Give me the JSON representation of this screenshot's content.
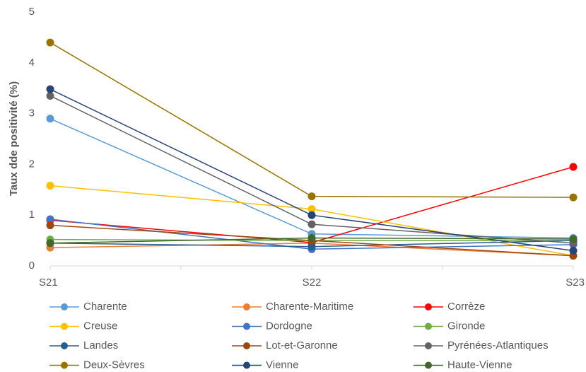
{
  "chart_data": {
    "type": "line",
    "y_label": "Taux dde positivité (%)",
    "categories": [
      "S21",
      "S22",
      "S23"
    ],
    "ylim": [
      0,
      5
    ],
    "yticks": [
      0,
      1,
      2,
      3,
      4,
      5
    ],
    "series": [
      {
        "name": "Charente",
        "color": "#5b9bd5",
        "values": [
          2.9,
          0.63,
          0.55
        ]
      },
      {
        "name": "Charente-Maritime",
        "color": "#ed7d31",
        "values": [
          0.36,
          0.45,
          0.2
        ]
      },
      {
        "name": "Corrèze",
        "color": "#ff0000",
        "values": [
          0.9,
          0.46,
          1.95
        ]
      },
      {
        "name": "Creuse",
        "color": "#ffc000",
        "values": [
          1.58,
          1.12,
          0.2
        ]
      },
      {
        "name": "Dordogne",
        "color": "#4472c4",
        "values": [
          0.92,
          0.33,
          0.42
        ]
      },
      {
        "name": "Gironde",
        "color": "#70ad47",
        "values": [
          0.52,
          0.5,
          0.5
        ]
      },
      {
        "name": "Landes",
        "color": "#255e91",
        "values": [
          0.45,
          0.38,
          0.5
        ]
      },
      {
        "name": "Lot-et-Garonne",
        "color": "#9e480e",
        "values": [
          0.8,
          0.5,
          0.2
        ]
      },
      {
        "name": "Pyrénées-Atlantiques",
        "color": "#636363",
        "values": [
          3.35,
          0.82,
          0.45
        ]
      },
      {
        "name": "Deux-Sèvres",
        "color": "#997300",
        "values": [
          4.4,
          1.37,
          1.35
        ]
      },
      {
        "name": "Vienne",
        "color": "#264478",
        "values": [
          3.48,
          1.0,
          0.3
        ]
      },
      {
        "name": "Haute-Vienne",
        "color": "#43682b",
        "values": [
          0.45,
          0.55,
          0.53
        ]
      }
    ]
  }
}
